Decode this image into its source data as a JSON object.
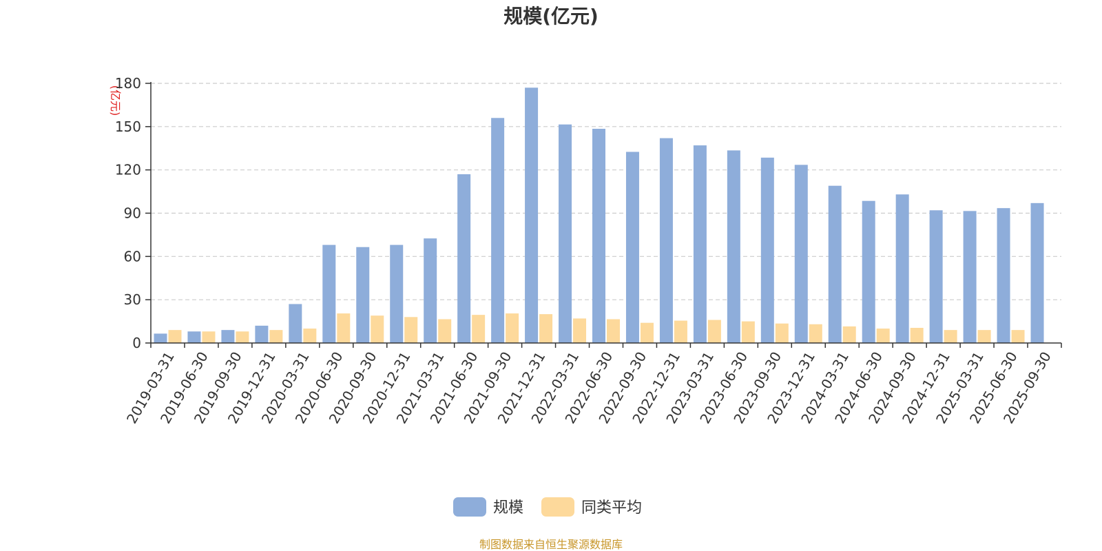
{
  "chart_data": {
    "type": "bar",
    "title": "规模(亿元)",
    "ylabel": "(亿元)",
    "ylim": [
      0,
      180
    ],
    "yticks": [
      0,
      30,
      60,
      90,
      120,
      150,
      180
    ],
    "grid": true,
    "legend_position": "bottom-center",
    "categories": [
      "2019-03-31",
      "2019-06-30",
      "2019-09-30",
      "2019-12-31",
      "2020-03-31",
      "2020-06-30",
      "2020-09-30",
      "2020-12-31",
      "2021-03-31",
      "2021-06-30",
      "2021-09-30",
      "2021-12-31",
      "2022-03-31",
      "2022-06-30",
      "2022-09-30",
      "2022-12-31",
      "2023-03-31",
      "2023-06-30",
      "2023-09-30",
      "2023-12-31",
      "2024-03-31",
      "2024-06-30",
      "2024-09-30",
      "2024-12-31",
      "2025-03-31",
      "2025-06-30",
      "2025-09-30"
    ],
    "series": [
      {
        "name": "规模",
        "color": "#8eadda",
        "values": [
          6.5,
          8,
          9,
          12,
          27,
          68,
          66.5,
          68,
          72.5,
          117,
          156,
          177,
          151.5,
          148.5,
          132.5,
          142,
          137,
          133.5,
          128.5,
          123.5,
          109,
          98.5,
          103,
          92,
          91.5,
          93.5,
          97
        ]
      },
      {
        "name": "同类平均",
        "color": "#fdd99b",
        "values": [
          9,
          8,
          8,
          9,
          10,
          20.5,
          19,
          18,
          16.5,
          19.5,
          20.5,
          20,
          17,
          16.5,
          14,
          15.5,
          16,
          15,
          13.5,
          13,
          11.5,
          10,
          10.5,
          9,
          9,
          9,
          null
        ]
      }
    ]
  },
  "footer": {
    "source": "制图数据来自恒生聚源数据库"
  }
}
